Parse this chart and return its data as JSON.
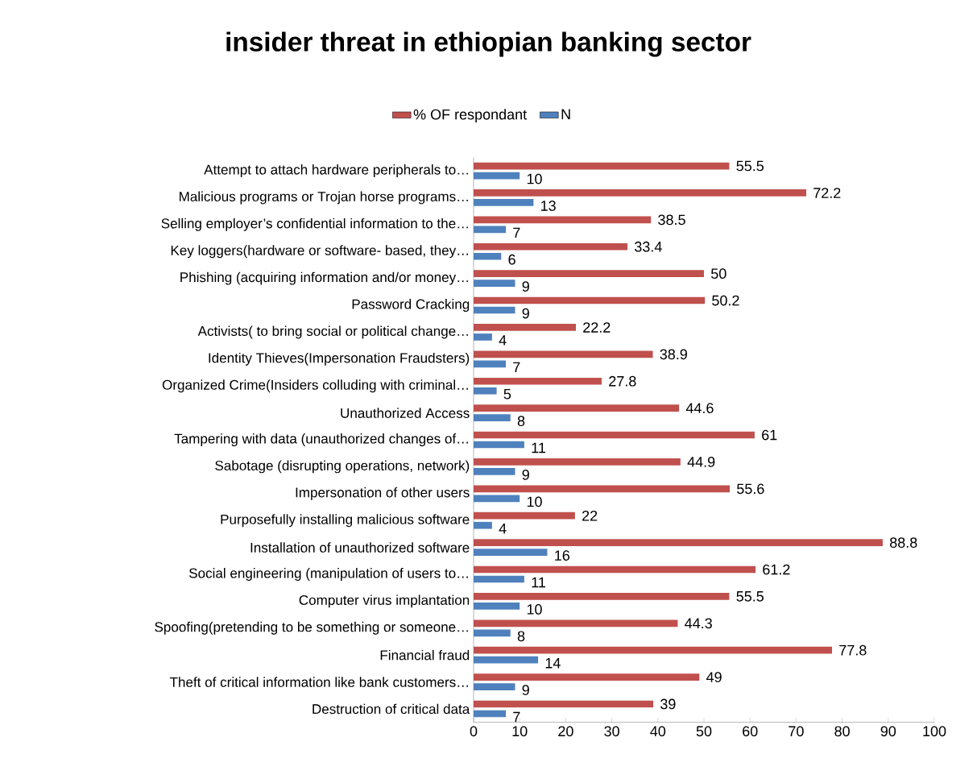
{
  "chart_data": {
    "type": "bar",
    "orientation": "horizontal",
    "title": "insider threat in ethiopian banking sector",
    "categories": [
      "Attempt to attach hardware peripherals to…",
      "Malicious programs or Trojan horse programs…",
      "Selling employer’s confidential information to the…",
      "Key loggers(hardware or software- based, they…",
      "Phishing (acquiring information and/or money…",
      "Password Cracking",
      "Activists( to bring social or political change…",
      "Identity Thieves(Impersonation Fraudsters)",
      "Organized Crime(Insiders colluding with criminal…",
      "Unauthorized Access",
      "Tampering with data (unauthorized changes of…",
      "Sabotage (disrupting operations, network)",
      "Impersonation of other users",
      "Purposefully installing malicious software",
      "Installation of unauthorized software",
      "Social engineering (manipulation of users to…",
      "Computer virus implantation",
      "Spoofing(pretending to be something or someone…",
      "Financial fraud",
      "Theft of critical information like bank customers…",
      "Destruction of critical data"
    ],
    "series": [
      {
        "name": "% OF respondant",
        "color": "#c0504d",
        "values": [
          55.5,
          72.2,
          38.5,
          33.4,
          50,
          50.2,
          22.2,
          38.9,
          27.8,
          44.6,
          61,
          44.9,
          55.6,
          22,
          88.8,
          61.2,
          55.5,
          44.3,
          77.8,
          49,
          39
        ]
      },
      {
        "name": "N",
        "color": "#4f81bd",
        "values": [
          10,
          13,
          7,
          6,
          9,
          9,
          4,
          7,
          5,
          8,
          11,
          9,
          10,
          4,
          16,
          11,
          10,
          8,
          14,
          9,
          7
        ]
      }
    ],
    "xlim": [
      0,
      100
    ],
    "xticks": [
      0,
      10,
      20,
      30,
      40,
      50,
      60,
      70,
      80,
      90,
      100
    ],
    "data_labels": true,
    "legend": "top"
  }
}
